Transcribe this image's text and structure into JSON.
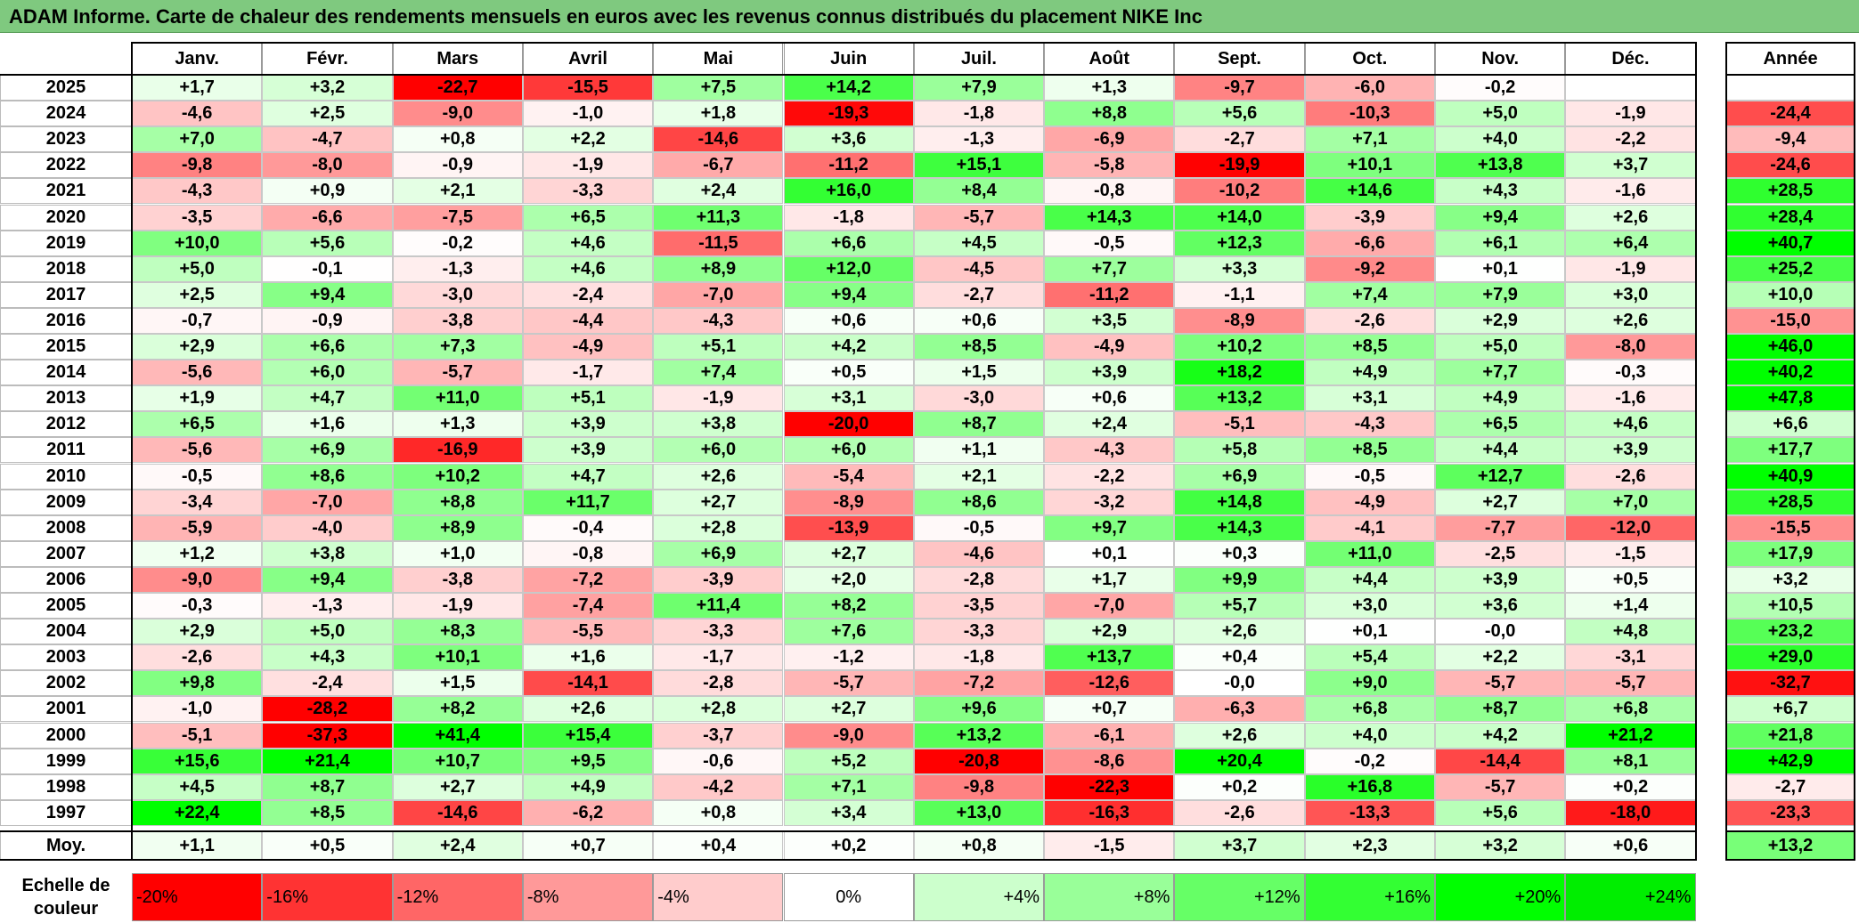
{
  "title": "ADAM Informe. Carte de chaleur des rendements mensuels en euros avec les revenus connus distribués du placement NIKE Inc",
  "chart_data": {
    "type": "heatmap",
    "columns": [
      "Janv.",
      "Févr.",
      "Mars",
      "Avril",
      "Mai",
      "Juin",
      "Juil.",
      "Août",
      "Sept.",
      "Oct.",
      "Nov.",
      "Déc."
    ],
    "year_column_label": "Année",
    "rows": [
      {
        "year": "2025",
        "months": [
          "+1,7",
          "+3,2",
          "-22,7",
          "-15,5",
          "+7,5",
          "+14,2",
          "+7,9",
          "+1,3",
          "-9,7",
          "-6,0",
          "-0,2",
          ""
        ],
        "annual": ""
      },
      {
        "year": "2024",
        "months": [
          "-4,6",
          "+2,5",
          "-9,0",
          "-1,0",
          "+1,8",
          "-19,3",
          "-1,8",
          "+8,8",
          "+5,6",
          "-10,3",
          "+5,0",
          "-1,9"
        ],
        "annual": "-24,4"
      },
      {
        "year": "2023",
        "months": [
          "+7,0",
          "-4,7",
          "+0,8",
          "+2,2",
          "-14,6",
          "+3,6",
          "-1,3",
          "-6,9",
          "-2,7",
          "+7,1",
          "+4,0",
          "-2,2"
        ],
        "annual": "-9,4"
      },
      {
        "year": "2022",
        "months": [
          "-9,8",
          "-8,0",
          "-0,9",
          "-1,9",
          "-6,7",
          "-11,2",
          "+15,1",
          "-5,8",
          "-19,9",
          "+10,1",
          "+13,8",
          "+3,7"
        ],
        "annual": "-24,6"
      },
      {
        "year": "2021",
        "months": [
          "-4,3",
          "+0,9",
          "+2,1",
          "-3,3",
          "+2,4",
          "+16,0",
          "+8,4",
          "-0,8",
          "-10,2",
          "+14,6",
          "+4,3",
          "-1,6"
        ],
        "annual": "+28,5"
      },
      {
        "year": "2020",
        "months": [
          "-3,5",
          "-6,6",
          "-7,5",
          "+6,5",
          "+11,3",
          "-1,8",
          "-5,7",
          "+14,3",
          "+14,0",
          "-3,9",
          "+9,4",
          "+2,6"
        ],
        "annual": "+28,4"
      },
      {
        "year": "2019",
        "months": [
          "+10,0",
          "+5,6",
          "-0,2",
          "+4,6",
          "-11,5",
          "+6,6",
          "+4,5",
          "-0,5",
          "+12,3",
          "-6,6",
          "+6,1",
          "+6,4"
        ],
        "annual": "+40,7"
      },
      {
        "year": "2018",
        "months": [
          "+5,0",
          "-0,1",
          "-1,3",
          "+4,6",
          "+8,9",
          "+12,0",
          "-4,5",
          "+7,7",
          "+3,3",
          "-9,2",
          "+0,1",
          "-1,9"
        ],
        "annual": "+25,2"
      },
      {
        "year": "2017",
        "months": [
          "+2,5",
          "+9,4",
          "-3,0",
          "-2,4",
          "-7,0",
          "+9,4",
          "-2,7",
          "-11,2",
          "-1,1",
          "+7,4",
          "+7,9",
          "+3,0"
        ],
        "annual": "+10,0"
      },
      {
        "year": "2016",
        "months": [
          "-0,7",
          "-0,9",
          "-3,8",
          "-4,4",
          "-4,3",
          "+0,6",
          "+0,6",
          "+3,5",
          "-8,9",
          "-2,6",
          "+2,9",
          "+2,6"
        ],
        "annual": "-15,0"
      },
      {
        "year": "2015",
        "months": [
          "+2,9",
          "+6,6",
          "+7,3",
          "-4,9",
          "+5,1",
          "+4,2",
          "+8,5",
          "-4,9",
          "+10,2",
          "+8,5",
          "+5,0",
          "-8,0"
        ],
        "annual": "+46,0"
      },
      {
        "year": "2014",
        "months": [
          "-5,6",
          "+6,0",
          "-5,7",
          "-1,7",
          "+7,4",
          "+0,5",
          "+1,5",
          "+3,9",
          "+18,2",
          "+4,9",
          "+7,7",
          "-0,3"
        ],
        "annual": "+40,2"
      },
      {
        "year": "2013",
        "months": [
          "+1,9",
          "+4,7",
          "+11,0",
          "+5,1",
          "-1,9",
          "+3,1",
          "-3,0",
          "+0,6",
          "+13,2",
          "+3,1",
          "+4,9",
          "-1,6"
        ],
        "annual": "+47,8"
      },
      {
        "year": "2012",
        "months": [
          "+6,5",
          "+1,6",
          "+1,3",
          "+3,9",
          "+3,8",
          "-20,0",
          "+8,7",
          "+2,4",
          "-5,1",
          "-4,3",
          "+6,5",
          "+4,6"
        ],
        "annual": "+6,6"
      },
      {
        "year": "2011",
        "months": [
          "-5,6",
          "+6,9",
          "-16,9",
          "+3,9",
          "+6,0",
          "+6,0",
          "+1,1",
          "-4,3",
          "+5,8",
          "+8,5",
          "+4,4",
          "+3,9"
        ],
        "annual": "+17,7"
      },
      {
        "year": "2010",
        "months": [
          "-0,5",
          "+8,6",
          "+10,2",
          "+4,7",
          "+2,6",
          "-5,4",
          "+2,1",
          "-2,2",
          "+6,9",
          "-0,5",
          "+12,7",
          "-2,6"
        ],
        "annual": "+40,9"
      },
      {
        "year": "2009",
        "months": [
          "-3,4",
          "-7,0",
          "+8,8",
          "+11,7",
          "+2,7",
          "-8,9",
          "+8,6",
          "-3,2",
          "+14,8",
          "-4,9",
          "+2,7",
          "+7,0"
        ],
        "annual": "+28,5"
      },
      {
        "year": "2008",
        "months": [
          "-5,9",
          "-4,0",
          "+8,9",
          "-0,4",
          "+2,8",
          "-13,9",
          "-0,5",
          "+9,7",
          "+14,3",
          "-4,1",
          "-7,7",
          "-12,0"
        ],
        "annual": "-15,5"
      },
      {
        "year": "2007",
        "months": [
          "+1,2",
          "+3,8",
          "+1,0",
          "-0,8",
          "+6,9",
          "+2,7",
          "-4,6",
          "+0,1",
          "+0,3",
          "+11,0",
          "-2,5",
          "-1,5"
        ],
        "annual": "+17,9"
      },
      {
        "year": "2006",
        "months": [
          "-9,0",
          "+9,4",
          "-3,8",
          "-7,2",
          "-3,9",
          "+2,0",
          "-2,8",
          "+1,7",
          "+9,9",
          "+4,4",
          "+3,9",
          "+0,5"
        ],
        "annual": "+3,2"
      },
      {
        "year": "2005",
        "months": [
          "-0,3",
          "-1,3",
          "-1,9",
          "-7,4",
          "+11,4",
          "+8,2",
          "-3,5",
          "-7,0",
          "+5,7",
          "+3,0",
          "+3,6",
          "+1,4"
        ],
        "annual": "+10,5"
      },
      {
        "year": "2004",
        "months": [
          "+2,9",
          "+5,0",
          "+8,3",
          "-5,5",
          "-3,3",
          "+7,6",
          "-3,3",
          "+2,9",
          "+2,6",
          "+0,1",
          "-0,0",
          "+4,8"
        ],
        "annual": "+23,2"
      },
      {
        "year": "2003",
        "months": [
          "-2,6",
          "+4,3",
          "+10,1",
          "+1,6",
          "-1,7",
          "-1,2",
          "-1,8",
          "+13,7",
          "+0,4",
          "+5,4",
          "+2,2",
          "-3,1"
        ],
        "annual": "+29,0"
      },
      {
        "year": "2002",
        "months": [
          "+9,8",
          "-2,4",
          "+1,5",
          "-14,1",
          "-2,8",
          "-5,7",
          "-7,2",
          "-12,6",
          "-0,0",
          "+9,0",
          "-5,7",
          "-5,7"
        ],
        "annual": "-32,7"
      },
      {
        "year": "2001",
        "months": [
          "-1,0",
          "-28,2",
          "+8,2",
          "+2,6",
          "+2,8",
          "+2,7",
          "+9,6",
          "+0,7",
          "-6,3",
          "+6,8",
          "+8,7",
          "+6,8"
        ],
        "annual": "+6,7"
      },
      {
        "year": "2000",
        "months": [
          "-5,1",
          "-37,3",
          "+41,4",
          "+15,4",
          "-3,7",
          "-9,0",
          "+13,2",
          "-6,1",
          "+2,6",
          "+4,0",
          "+4,2",
          "+21,2"
        ],
        "annual": "+21,8"
      },
      {
        "year": "1999",
        "months": [
          "+15,6",
          "+21,4",
          "+10,7",
          "+9,5",
          "-0,6",
          "+5,2",
          "-20,8",
          "-8,6",
          "+20,4",
          "-0,2",
          "-14,4",
          "+8,1"
        ],
        "annual": "+42,9"
      },
      {
        "year": "1998",
        "months": [
          "+4,5",
          "+8,7",
          "+2,7",
          "+4,9",
          "-4,2",
          "+7,1",
          "-9,8",
          "-22,3",
          "+0,2",
          "+16,8",
          "-5,7",
          "+0,2"
        ],
        "annual": "-2,7"
      },
      {
        "year": "1997",
        "months": [
          "+22,4",
          "+8,5",
          "-14,6",
          "-6,2",
          "+0,8",
          "+3,4",
          "+13,0",
          "-16,3",
          "-2,6",
          "-13,3",
          "+5,6",
          "-18,0"
        ],
        "annual": "-23,3"
      }
    ],
    "average": {
      "label": "Moy.",
      "months": [
        "+1,1",
        "+0,5",
        "+2,4",
        "+0,7",
        "+0,4",
        "+0,2",
        "+0,8",
        "-1,5",
        "+3,7",
        "+2,3",
        "+3,2",
        "+0,6"
      ],
      "annual": "+13,2"
    },
    "color_scale": {
      "label": "Echelle de couleur",
      "steps": [
        "-20%",
        "-16%",
        "-12%",
        "-8%",
        "-4%",
        "0%",
        "+4%",
        "+8%",
        "+12%",
        "+16%",
        "+20%",
        "+24%"
      ],
      "colors": [
        "#ff0000",
        "#ff3333",
        "#ff6666",
        "#ff9999",
        "#ffcccc",
        "#ffffff",
        "#ccffcc",
        "#99ff99",
        "#66ff66",
        "#33ff33",
        "#00ff00",
        "#00ee00"
      ]
    }
  }
}
